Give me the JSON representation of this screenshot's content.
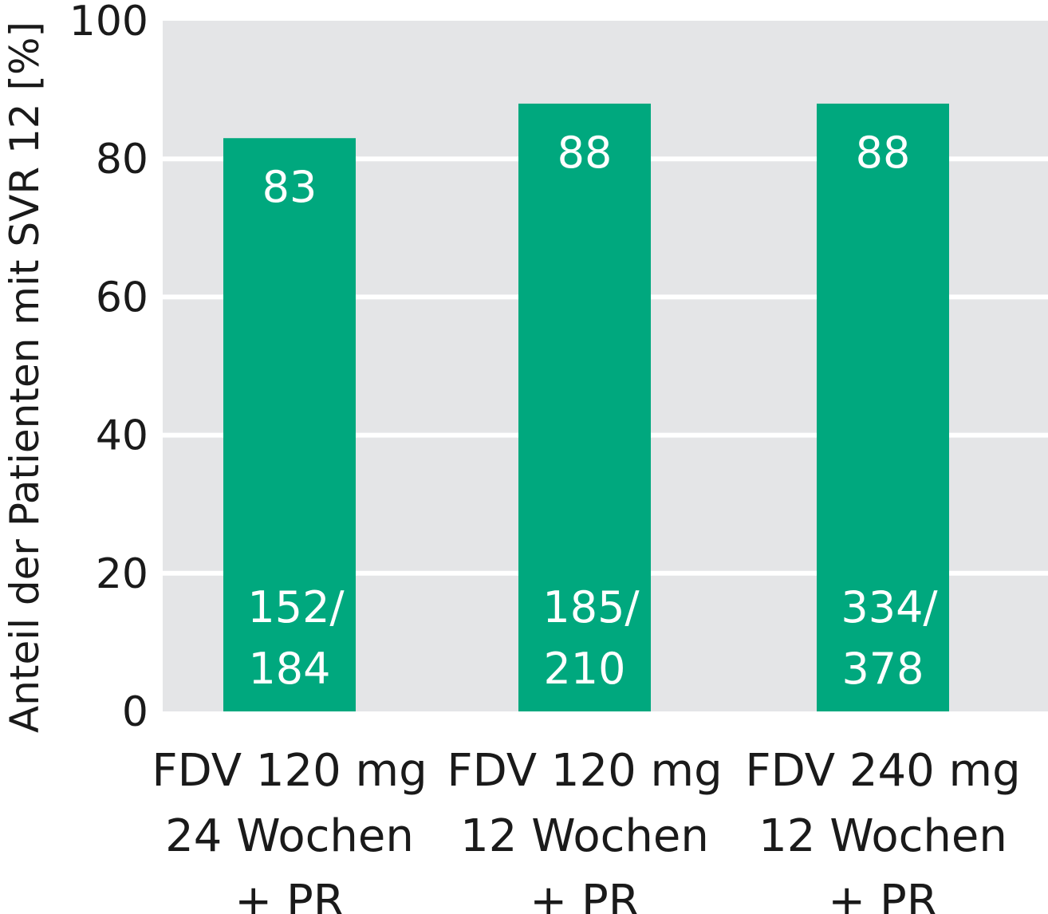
{
  "chart_data": {
    "type": "bar",
    "title": "",
    "xlabel": "",
    "ylabel": "Anteil der Patienten mit SVR 12 [%]",
    "ylim": [
      0,
      100
    ],
    "yticks": [
      "0",
      "20",
      "40",
      "60",
      "80",
      "100"
    ],
    "grid": true,
    "categories": [
      [
        "FDV 120 mg",
        "24 Wochen",
        "+ PR"
      ],
      [
        "FDV 120 mg",
        "12 Wochen",
        "+ PR"
      ],
      [
        "FDV 240 mg",
        "12 Wochen",
        "+ PR"
      ]
    ],
    "values": [
      83,
      88,
      88
    ],
    "value_labels": [
      "83",
      "88",
      "88"
    ],
    "fraction_labels": [
      [
        "152/",
        "184"
      ],
      [
        "185/",
        "210"
      ],
      [
        "334/",
        "378"
      ]
    ],
    "colors": {
      "bar": "#00a87e",
      "plot_background": "#e4e5e7",
      "gridline": "#ffffff"
    }
  }
}
